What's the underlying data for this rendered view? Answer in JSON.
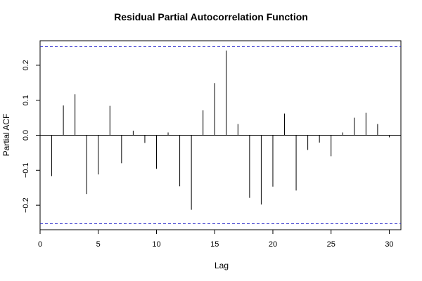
{
  "chart_data": {
    "type": "bar",
    "title": "Residual Partial Autocorrelation Function",
    "xlabel": "Lag",
    "ylabel": "Partial ACF",
    "xlim": [
      0,
      31
    ],
    "ylim": [
      -0.27,
      0.27
    ],
    "x_ticks": [
      0,
      5,
      10,
      15,
      20,
      25,
      30
    ],
    "y_ticks": [
      -0.2,
      -0.1,
      0.0,
      0.1,
      0.2
    ],
    "x_tick_labels": [
      "0",
      "5",
      "10",
      "15",
      "20",
      "25",
      "30"
    ],
    "y_tick_labels": [
      "−0.2",
      "−0.1",
      "0.0",
      "0.1",
      "0.2"
    ],
    "confidence_band": [
      0.253,
      -0.253
    ],
    "confidence_color": "#3333cc",
    "series": [
      {
        "lags": [
          1,
          2,
          3,
          4,
          5,
          6,
          7,
          8,
          9,
          10,
          11,
          12,
          13,
          14,
          15,
          16,
          17,
          18,
          19,
          20,
          21,
          22,
          23,
          24,
          25,
          26,
          27,
          28,
          29,
          30
        ],
        "values": [
          -0.117,
          0.085,
          0.117,
          -0.168,
          -0.112,
          0.084,
          -0.08,
          0.013,
          -0.022,
          -0.096,
          0.008,
          -0.146,
          -0.213,
          0.071,
          0.149,
          0.242,
          0.032,
          -0.179,
          -0.198,
          -0.147,
          0.062,
          -0.158,
          -0.042,
          -0.021,
          -0.06,
          0.008,
          0.05,
          0.064,
          0.032,
          -0.006
        ]
      }
    ]
  }
}
